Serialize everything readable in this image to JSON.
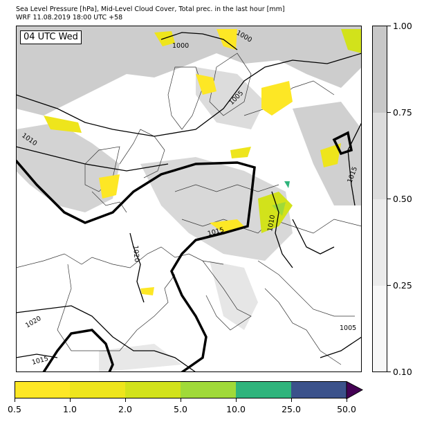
{
  "header": {
    "line1": "Sea Level Pressure [hPa], Mid-Level Cloud Cover, Total prec. in the last hour [mm]",
    "line2": "WRF 11.08.2019 18:00 UTC +58"
  },
  "map": {
    "time_label": "04 UTC Wed",
    "isobar_labels": [
      "1000",
      "1000",
      "1005",
      "1010",
      "1015",
      "1010",
      "1015",
      "1020",
      "1020",
      "1015",
      "1005"
    ]
  },
  "cloud_cover_scale": {
    "labels": [
      "1.00",
      "0.75",
      "0.50",
      "0.25",
      "0.10"
    ],
    "colors": [
      "#c8c8c8",
      "#dcdcdc",
      "#ebebeb",
      "#f7f7f7"
    ]
  },
  "precip_scale": {
    "labels": [
      "0.5",
      "1.0",
      "2.0",
      "5.0",
      "10.0",
      "25.0",
      "50.0"
    ],
    "colors": [
      "#fde725",
      "#eee51c",
      "#d2e21b",
      "#a0da39",
      "#2fb47c",
      "#3b528b",
      "#440154"
    ]
  }
}
